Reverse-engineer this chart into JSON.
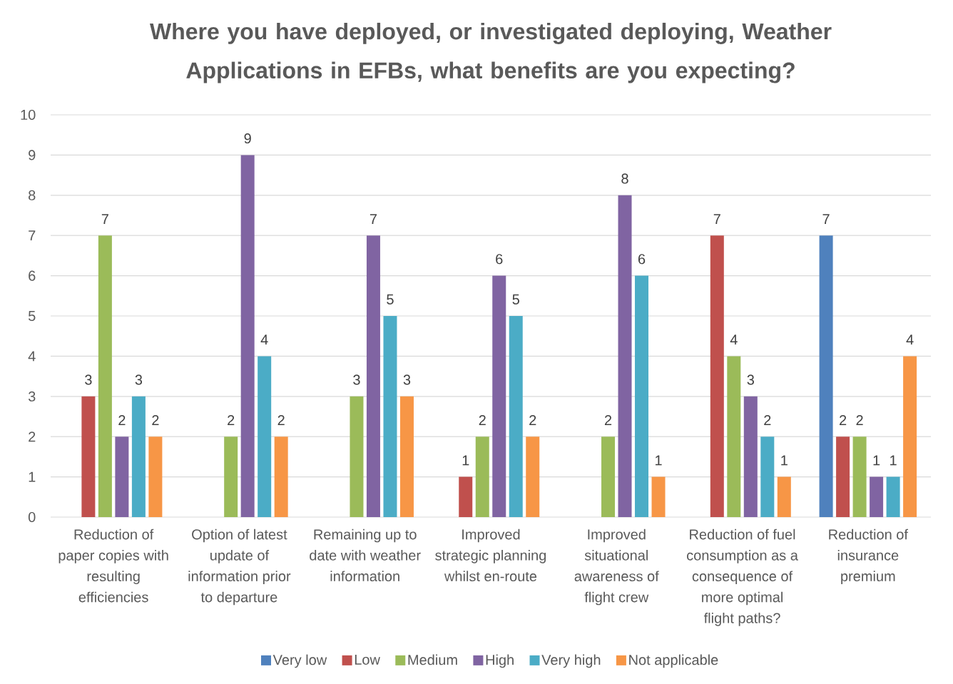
{
  "chart_data": {
    "type": "bar",
    "title": "Where you have deployed, or investigated deploying, Weather Applications in EFBs, what benefits are you expecting?",
    "categories": [
      "Reduction of paper copies with resulting efficiencies",
      "Option of latest update of information prior to departure",
      "Remaining up to date with weather information",
      "Improved strategic planning whilst en-route",
      "Improved situational awareness of flight crew",
      "Reduction of fuel consumption as a consequence of more optimal flight paths?",
      "Reduction of insurance premium"
    ],
    "series": [
      {
        "name": "Very low",
        "color": "#4f81bd",
        "values": [
          null,
          null,
          null,
          null,
          null,
          null,
          7
        ]
      },
      {
        "name": "Low",
        "color": "#c0504d",
        "values": [
          3,
          null,
          null,
          1,
          null,
          7,
          2
        ]
      },
      {
        "name": "Medium",
        "color": "#9bbb59",
        "values": [
          7,
          2,
          3,
          2,
          2,
          4,
          2
        ]
      },
      {
        "name": "High",
        "color": "#8064a2",
        "values": [
          2,
          9,
          7,
          6,
          8,
          3,
          1
        ]
      },
      {
        "name": "Very high",
        "color": "#4bacc6",
        "values": [
          3,
          4,
          5,
          5,
          6,
          2,
          1
        ]
      },
      {
        "name": "Not applicable",
        "color": "#f79646",
        "values": [
          2,
          2,
          3,
          2,
          1,
          1,
          4
        ]
      }
    ],
    "ylim": [
      0,
      10
    ],
    "yticks": [
      0,
      1,
      2,
      3,
      4,
      5,
      6,
      7,
      8,
      9,
      10
    ],
    "grid": "y",
    "legend": "bottom",
    "data_labels": true
  }
}
